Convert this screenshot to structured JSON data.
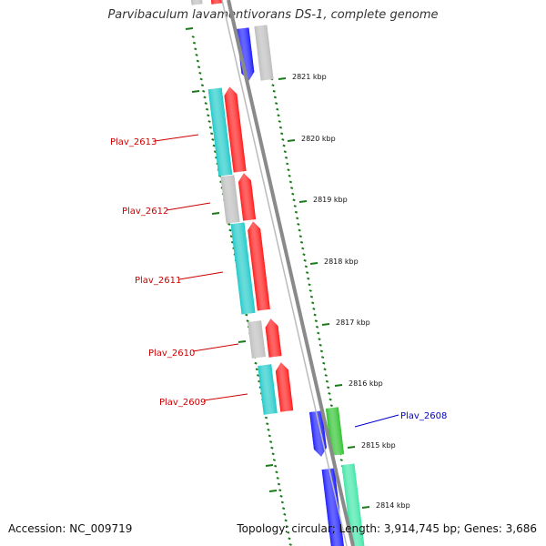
{
  "title": "Parvibaculum lavamentivorans DS-1, complete genome",
  "footer": {
    "accession": "Accession: NC_009719",
    "summary": "Topology: circular; Length: 3,914,745 bp; Genes: 3,686"
  },
  "colors": {
    "backbone": "#8a8a8a",
    "tick": "#1a7a1a",
    "gene_red": "#ff1a1a",
    "gene_cyan": "#1fc9c9",
    "gene_grey": "#bdbdbd",
    "gene_blue": "#1a1aff",
    "gene_green": "#2ec22e",
    "gene_mint": "#3de6a6",
    "label_red": "#cc0000",
    "label_blue": "#0000cc"
  },
  "scale_labels": [
    "2821 kbp",
    "2820 kbp",
    "2819 kbp",
    "2818 kbp",
    "2817 kbp",
    "2816 kbp",
    "2815 kbp",
    "2814 kbp"
  ],
  "gene_labels": [
    {
      "text": "Plav_2613",
      "side": "left",
      "color": "label_red"
    },
    {
      "text": "Plav_2612",
      "side": "left",
      "color": "label_red"
    },
    {
      "text": "Plav_2611",
      "side": "left",
      "color": "label_red"
    },
    {
      "text": "Plav_2610",
      "side": "left",
      "color": "label_red"
    },
    {
      "text": "Plav_2609",
      "side": "left",
      "color": "label_red"
    },
    {
      "text": "Plav_2608",
      "side": "right",
      "color": "label_blue"
    }
  ]
}
